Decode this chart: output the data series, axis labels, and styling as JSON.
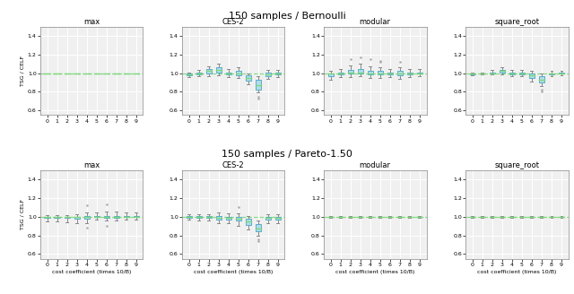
{
  "row_titles": [
    "150 samples / Bernoulli",
    "150 samples / Pareto-1.50"
  ],
  "col_titles": [
    "max",
    "CES-2",
    "modular",
    "square_root"
  ],
  "xlabel": "cost coefficient (times 10/B)",
  "ylabel": "TSG / CELF",
  "x_positions": [
    0,
    1,
    2,
    3,
    4,
    5,
    6,
    7,
    8,
    9
  ],
  "ylim": [
    0.55,
    1.5
  ],
  "yticks": [
    0.6,
    0.8,
    1.0,
    1.2,
    1.4
  ],
  "box_facecolor": "#b0dde8",
  "box_edgecolor": "#5aabca",
  "median_color": "#7dd87d",
  "whisker_color": "#888888",
  "flier_color": "#aaaaaa",
  "hline_color": "#7dd87d",
  "hline_style": "--",
  "hline_y": 1.0,
  "background_color": "#f0f0f0",
  "grid_color": "white",
  "figsize": [
    6.4,
    3.28
  ],
  "dpi": 100,
  "bernoulli_max": {
    "medians": [
      1.0,
      1.0,
      1.0,
      1.0,
      1.0,
      1.0,
      1.0,
      1.0,
      1.0,
      1.0
    ],
    "q1": [
      1.0,
      1.0,
      1.0,
      1.0,
      1.0,
      1.0,
      1.0,
      1.0,
      1.0,
      1.0
    ],
    "q3": [
      1.0,
      1.0,
      1.0,
      1.0,
      1.0,
      1.0,
      1.0,
      1.0,
      1.0,
      1.0
    ],
    "whislo": [
      1.0,
      1.0,
      1.0,
      1.0,
      1.0,
      1.0,
      1.0,
      1.0,
      1.0,
      1.0
    ],
    "whishi": [
      1.0,
      1.0,
      1.0,
      1.0,
      1.0,
      1.0,
      1.0,
      1.0,
      1.0,
      1.0
    ],
    "fliers": [
      [],
      [],
      [],
      [],
      [],
      [],
      [],
      [],
      [],
      []
    ]
  },
  "bernoulli_ces2": {
    "medians": [
      0.99,
      1.0,
      1.02,
      1.03,
      1.0,
      1.0,
      0.95,
      0.87,
      0.99,
      1.0
    ],
    "q1": [
      0.98,
      0.99,
      1.0,
      1.01,
      0.99,
      0.98,
      0.92,
      0.82,
      0.97,
      0.99
    ],
    "q3": [
      1.0,
      1.01,
      1.04,
      1.06,
      1.01,
      1.02,
      0.98,
      0.93,
      1.01,
      1.01
    ],
    "whislo": [
      0.96,
      0.97,
      0.97,
      0.98,
      0.96,
      0.95,
      0.88,
      0.79,
      0.94,
      0.96
    ],
    "whishi": [
      1.01,
      1.03,
      1.07,
      1.1,
      1.04,
      1.06,
      1.0,
      0.97,
      1.03,
      1.03
    ],
    "fliers": [
      [],
      [],
      [],
      [],
      [],
      [],
      [],
      [
        0.75,
        0.73
      ],
      [],
      []
    ]
  },
  "bernoulli_modular": {
    "medians": [
      1.0,
      1.0,
      1.01,
      1.01,
      1.0,
      1.0,
      1.0,
      1.0,
      1.0,
      1.0
    ],
    "q1": [
      0.97,
      0.99,
      1.0,
      1.0,
      0.99,
      0.99,
      0.99,
      0.98,
      0.99,
      1.0
    ],
    "q3": [
      1.0,
      1.01,
      1.03,
      1.04,
      1.02,
      1.02,
      1.01,
      1.02,
      1.01,
      1.01
    ],
    "whislo": [
      0.93,
      0.96,
      0.96,
      0.97,
      0.95,
      0.95,
      0.96,
      0.94,
      0.96,
      0.97
    ],
    "whishi": [
      1.02,
      1.04,
      1.08,
      1.1,
      1.07,
      1.06,
      1.04,
      1.06,
      1.04,
      1.04
    ],
    "fliers": [
      [],
      [],
      [
        1.15
      ],
      [
        1.17
      ],
      [
        1.15
      ],
      [
        1.13,
        1.12
      ],
      [],
      [
        1.12
      ],
      [],
      []
    ]
  },
  "bernoulli_squareroot": {
    "medians": [
      1.0,
      1.0,
      1.0,
      1.02,
      1.0,
      1.0,
      0.98,
      0.93,
      1.0,
      1.0
    ],
    "q1": [
      0.99,
      1.0,
      1.0,
      1.01,
      0.99,
      0.99,
      0.95,
      0.9,
      0.99,
      1.0
    ],
    "q3": [
      1.0,
      1.0,
      1.01,
      1.03,
      1.01,
      1.01,
      1.0,
      0.97,
      1.0,
      1.01
    ],
    "whislo": [
      0.98,
      0.99,
      0.99,
      0.99,
      0.97,
      0.97,
      0.91,
      0.86,
      0.97,
      0.98
    ],
    "whishi": [
      1.01,
      1.01,
      1.03,
      1.06,
      1.03,
      1.03,
      1.02,
      1.0,
      1.02,
      1.02
    ],
    "fliers": [
      [],
      [],
      [],
      [],
      [],
      [],
      [],
      [
        0.82,
        0.8
      ],
      [],
      []
    ]
  },
  "pareto_max": {
    "medians": [
      1.0,
      1.0,
      1.0,
      1.0,
      1.0,
      1.0,
      1.0,
      1.0,
      1.0,
      1.0
    ],
    "q1": [
      0.99,
      0.99,
      0.99,
      0.98,
      0.98,
      1.0,
      0.99,
      0.99,
      1.0,
      1.0
    ],
    "q3": [
      1.0,
      1.0,
      1.0,
      1.0,
      1.01,
      1.01,
      1.01,
      1.01,
      1.01,
      1.01
    ],
    "whislo": [
      0.95,
      0.95,
      0.94,
      0.93,
      0.93,
      0.97,
      0.96,
      0.96,
      0.97,
      0.97
    ],
    "whishi": [
      1.02,
      1.02,
      1.02,
      1.03,
      1.05,
      1.05,
      1.06,
      1.06,
      1.05,
      1.05
    ],
    "fliers": [
      [],
      [],
      [],
      [],
      [
        1.12,
        0.88
      ],
      [],
      [
        1.13,
        0.9
      ],
      [],
      [],
      []
    ]
  },
  "pareto_ces2": {
    "medians": [
      1.0,
      1.0,
      1.0,
      0.99,
      0.99,
      0.98,
      0.95,
      0.87,
      0.99,
      0.99
    ],
    "q1": [
      0.99,
      0.99,
      0.99,
      0.97,
      0.97,
      0.96,
      0.91,
      0.84,
      0.97,
      0.97
    ],
    "q3": [
      1.01,
      1.01,
      1.01,
      1.01,
      1.0,
      1.0,
      0.98,
      0.92,
      1.0,
      1.0
    ],
    "whislo": [
      0.97,
      0.96,
      0.96,
      0.93,
      0.93,
      0.9,
      0.86,
      0.8,
      0.93,
      0.93
    ],
    "whishi": [
      1.03,
      1.03,
      1.03,
      1.05,
      1.04,
      1.04,
      1.01,
      0.96,
      1.03,
      1.03
    ],
    "fliers": [
      [],
      [],
      [],
      [],
      [],
      [
        1.1
      ],
      [],
      [
        0.76,
        0.74
      ],
      [],
      []
    ]
  },
  "pareto_modular": {
    "medians": [
      1.0,
      1.0,
      1.0,
      1.0,
      1.0,
      1.0,
      1.0,
      1.0,
      1.0,
      1.0
    ],
    "q1": [
      1.0,
      1.0,
      1.0,
      1.0,
      1.0,
      1.0,
      1.0,
      1.0,
      1.0,
      1.0
    ],
    "q3": [
      1.0,
      1.0,
      1.0,
      1.0,
      1.0,
      1.0,
      1.0,
      1.0,
      1.0,
      1.0
    ],
    "whislo": [
      0.99,
      0.99,
      0.99,
      0.99,
      0.99,
      0.99,
      0.99,
      0.99,
      0.99,
      0.99
    ],
    "whishi": [
      1.01,
      1.01,
      1.01,
      1.01,
      1.01,
      1.01,
      1.01,
      1.01,
      1.01,
      1.01
    ],
    "fliers": [
      [],
      [],
      [],
      [],
      [],
      [],
      [],
      [],
      [],
      []
    ]
  },
  "pareto_squareroot": {
    "medians": [
      1.0,
      1.0,
      1.0,
      1.0,
      1.0,
      1.0,
      1.0,
      1.0,
      1.0,
      1.0
    ],
    "q1": [
      1.0,
      1.0,
      1.0,
      1.0,
      1.0,
      1.0,
      1.0,
      1.0,
      1.0,
      1.0
    ],
    "q3": [
      1.0,
      1.0,
      1.0,
      1.0,
      1.0,
      1.0,
      1.0,
      1.0,
      1.0,
      1.0
    ],
    "whislo": [
      0.99,
      0.99,
      0.99,
      0.99,
      0.99,
      0.99,
      0.99,
      0.99,
      0.99,
      0.99
    ],
    "whishi": [
      1.01,
      1.01,
      1.01,
      1.01,
      1.01,
      1.01,
      1.01,
      1.01,
      1.01,
      1.01
    ],
    "fliers": [
      [],
      [],
      [],
      [],
      [],
      [],
      [],
      [],
      [],
      []
    ]
  }
}
